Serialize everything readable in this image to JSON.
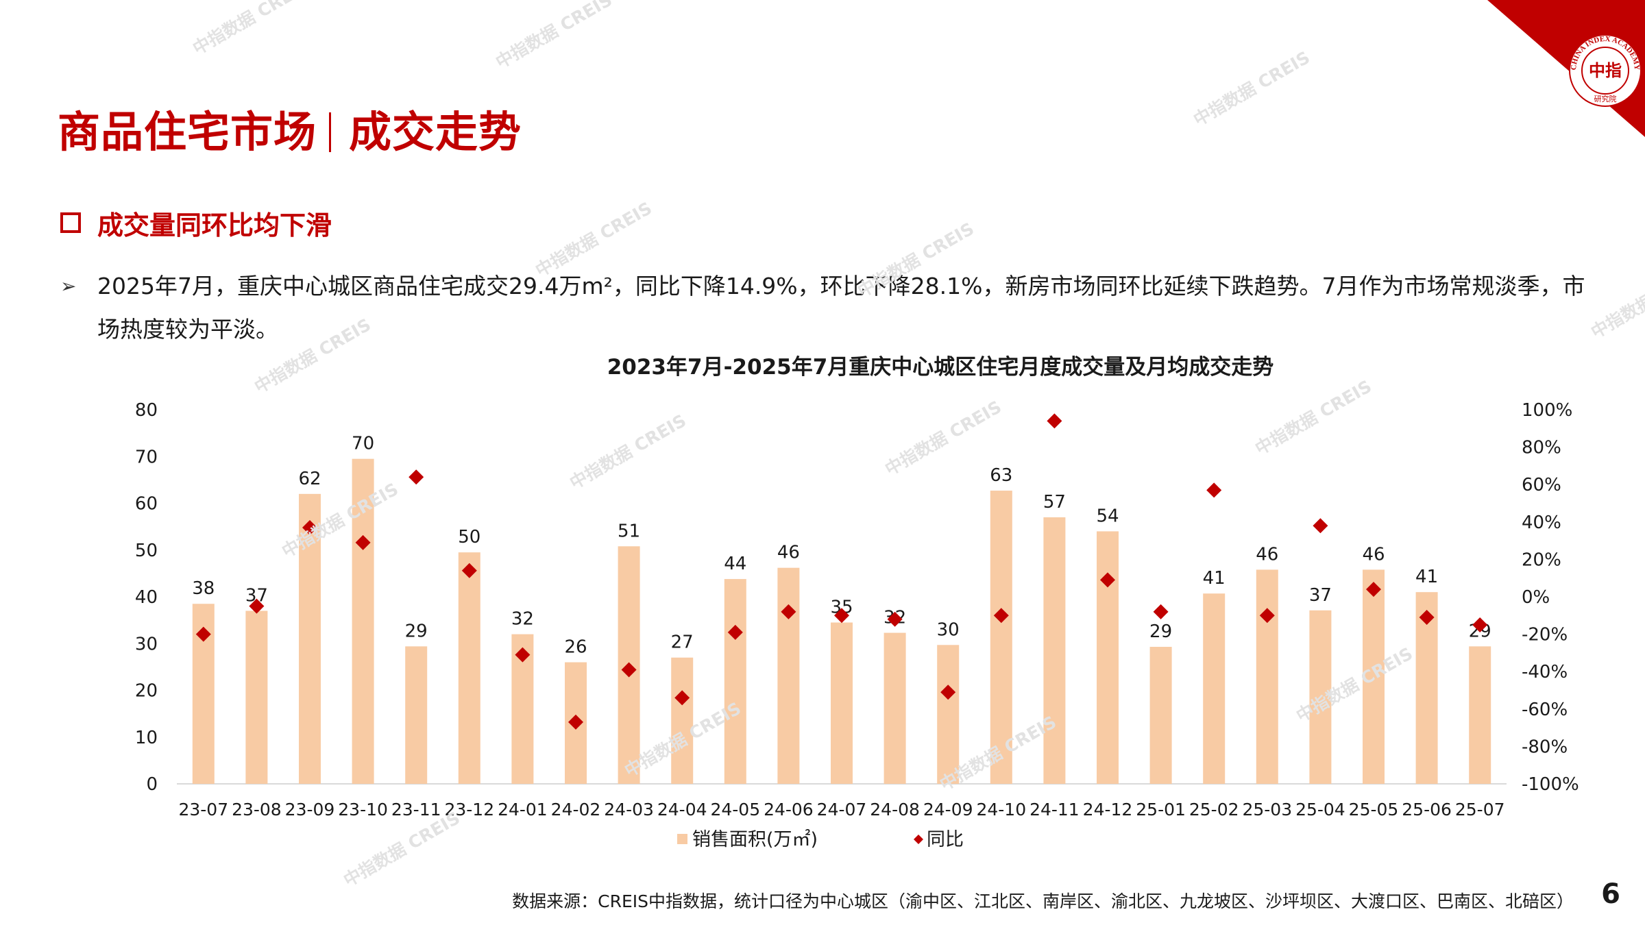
{
  "header": {
    "title_left": "商品住宅市场",
    "title_right": "成交走势",
    "logo_top_text": "CHINA INDEX ACADEMY",
    "logo_center_text": "中指",
    "logo_bottom_text": "研究院"
  },
  "section": {
    "title": "成交量同环比均下滑"
  },
  "bullet": {
    "text": "2025年7月，重庆中心城区商品住宅成交29.4万m²，同比下降14.9%，环比下降28.1%，新房市场同环比延续下跌趋势。7月作为市场常规淡季，市场热度较为平淡。"
  },
  "chart_data": {
    "type": "bar",
    "title": "2023年7月-2025年7月重庆中心城区住宅月度成交量及月均成交走势",
    "categories": [
      "23-07",
      "23-08",
      "23-09",
      "23-10",
      "23-11",
      "23-12",
      "24-01",
      "24-02",
      "24-03",
      "24-04",
      "24-05",
      "24-06",
      "24-07",
      "24-08",
      "24-09",
      "24-10",
      "24-11",
      "24-12",
      "25-01",
      "25-02",
      "25-03",
      "25-04",
      "25-05",
      "25-06",
      "25-07"
    ],
    "series": [
      {
        "name": "销售面积(万㎡)",
        "type": "bar",
        "axis": "left",
        "color": "#f8cba4",
        "values": [
          38.5,
          37,
          62,
          69.5,
          29.4,
          49.5,
          32,
          26,
          50.8,
          27,
          43.8,
          46.2,
          34.5,
          32.3,
          29.7,
          62.7,
          57,
          54,
          29.3,
          40.7,
          45.8,
          37.1,
          45.8,
          41,
          29.4
        ],
        "labels": [
          "38",
          "37",
          "62",
          "70",
          "29",
          "50",
          "32",
          "26",
          "51",
          "27",
          "44",
          "46",
          "35",
          "32",
          "30",
          "63",
          "57",
          "54",
          "29",
          "41",
          "46",
          "37",
          "46",
          "41",
          "29"
        ]
      },
      {
        "name": "同比",
        "type": "scatter",
        "axis": "right",
        "marker": "diamond",
        "color": "#c00000",
        "values": [
          -20,
          -5,
          37,
          29,
          64,
          14,
          -31,
          -67,
          -39,
          -54,
          -19,
          -8,
          -10,
          -12,
          -51,
          -10,
          94,
          9,
          -8,
          57,
          -10,
          38,
          4,
          -11,
          -15
        ]
      }
    ],
    "y_left": {
      "min": 0,
      "max": 80,
      "ticks": [
        0,
        10,
        20,
        30,
        40,
        50,
        60,
        70,
        80
      ]
    },
    "y_right": {
      "min": -100,
      "max": 100,
      "ticks": [
        "-100%",
        "-80%",
        "-60%",
        "-40%",
        "-20%",
        "0%",
        "20%",
        "40%",
        "60%",
        "80%",
        "100%"
      ]
    },
    "grid": false,
    "legend_position": "bottom"
  },
  "footer": {
    "source": "数据来源：CREIS中指数据，统计口径为中心城区（渝中区、江北区、南岸区、渝北区、九龙坡区、沙坪坝区、大渡口区、巴南区、北碚区）",
    "page_number": "6"
  },
  "watermark": {
    "line1": "中指数据",
    "line2": "CREIS"
  },
  "colors": {
    "brand_red": "#c00000",
    "bar_fill": "#f8cba4"
  }
}
